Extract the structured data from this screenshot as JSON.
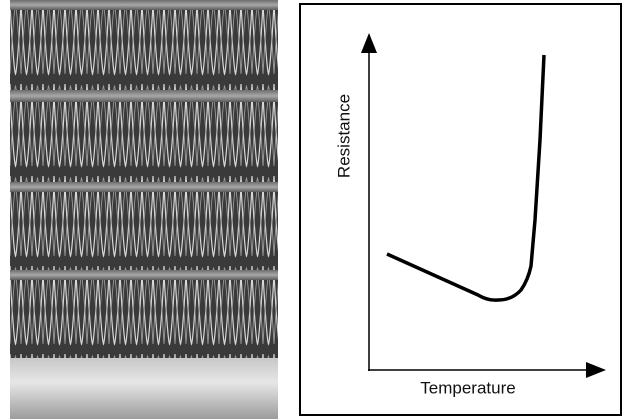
{
  "diagram": {
    "y_axis_label": "Resistance",
    "x_axis_label": "Temperature"
  }
}
